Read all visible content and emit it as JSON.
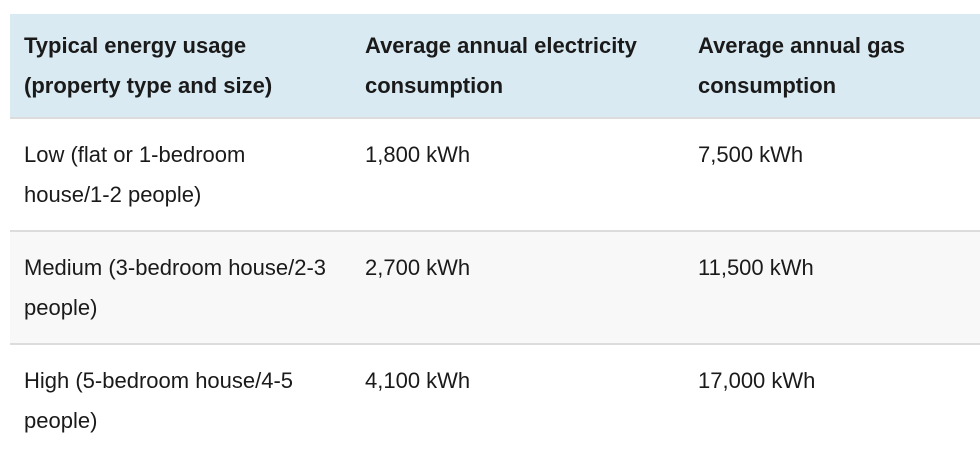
{
  "table": {
    "header": {
      "usage": "Typical energy usage (property type and size)",
      "electricity": "Average annual electricity consumption",
      "gas": "Average annual gas consumption"
    },
    "rows": [
      {
        "usage": "Low (flat or 1-bedroom house/1-2 people)",
        "electricity": "1,800 kWh",
        "gas": "7,500 kWh"
      },
      {
        "usage": "Medium (3-bedroom house/2-3 people)",
        "electricity": "2,700 kWh",
        "gas": "11,500 kWh"
      },
      {
        "usage": "High (5-bedroom house/4-5 people)",
        "electricity": "4,100 kWh",
        "gas": "17,000 kWh"
      }
    ],
    "colors": {
      "header_background": "#d9eaf3",
      "alt_row_background": "#f8f8f8",
      "row_background": "#ffffff",
      "row_border": "#dcdcdc",
      "text": "#1a1a1a"
    }
  },
  "chart_data": {
    "type": "table",
    "columns": [
      "Typical energy usage (property type and size)",
      "Average annual electricity consumption",
      "Average annual gas consumption"
    ],
    "rows": [
      [
        "Low (flat or 1-bedroom house/1-2 people)",
        "1,800 kWh",
        "7,500 kWh"
      ],
      [
        "Medium (3-bedroom house/2-3 people)",
        "2,700 kWh",
        "11,500 kWh"
      ],
      [
        "High (5-bedroom house/4-5 people)",
        "4,100 kWh",
        "17,000 kWh"
      ]
    ],
    "values": {
      "electricity_kwh": [
        1800,
        2700,
        4100
      ],
      "gas_kwh": [
        7500,
        11500,
        17000
      ]
    }
  }
}
